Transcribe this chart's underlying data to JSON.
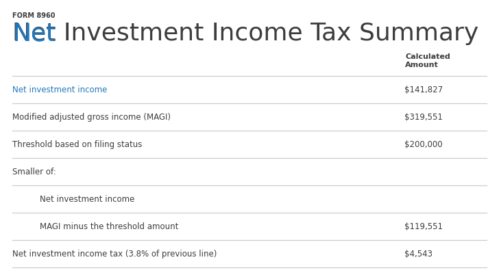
{
  "form_label": "FORM 8960",
  "title_blue": "Net",
  "title_rest": " Investment Income Tax Summary",
  "title_color_main": "#3d3d3d",
  "title_color_highlight": "#2277bb",
  "background_color": "#ffffff",
  "column_header_line1": "Calculated",
  "column_header_line2": "Amount",
  "rows": [
    {
      "label": "Net investment income",
      "label_highlight": true,
      "value": "$141,827",
      "indent": 0
    },
    {
      "label": "Modified adjusted gross income (MAGI)",
      "label_highlight": false,
      "value": "$319,551",
      "indent": 0
    },
    {
      "label": "Threshold based on filing status",
      "label_highlight": false,
      "value": "$200,000",
      "indent": 0
    },
    {
      "label": "Smaller of:",
      "label_highlight": false,
      "value": "",
      "indent": 0
    },
    {
      "label": "Net investment income",
      "label_highlight": false,
      "value": "",
      "indent": 1
    },
    {
      "label": "MAGI minus the threshold amount",
      "label_highlight": false,
      "value": "$119,551",
      "indent": 1
    },
    {
      "label": "Net investment income tax (3.8% of previous line)",
      "label_highlight": false,
      "value": "$4,543",
      "indent": 0
    }
  ],
  "line_color": "#cccccc",
  "text_color": "#3d3d3d",
  "value_color": "#3d3d3d",
  "label_highlight_color": "#2277bb"
}
